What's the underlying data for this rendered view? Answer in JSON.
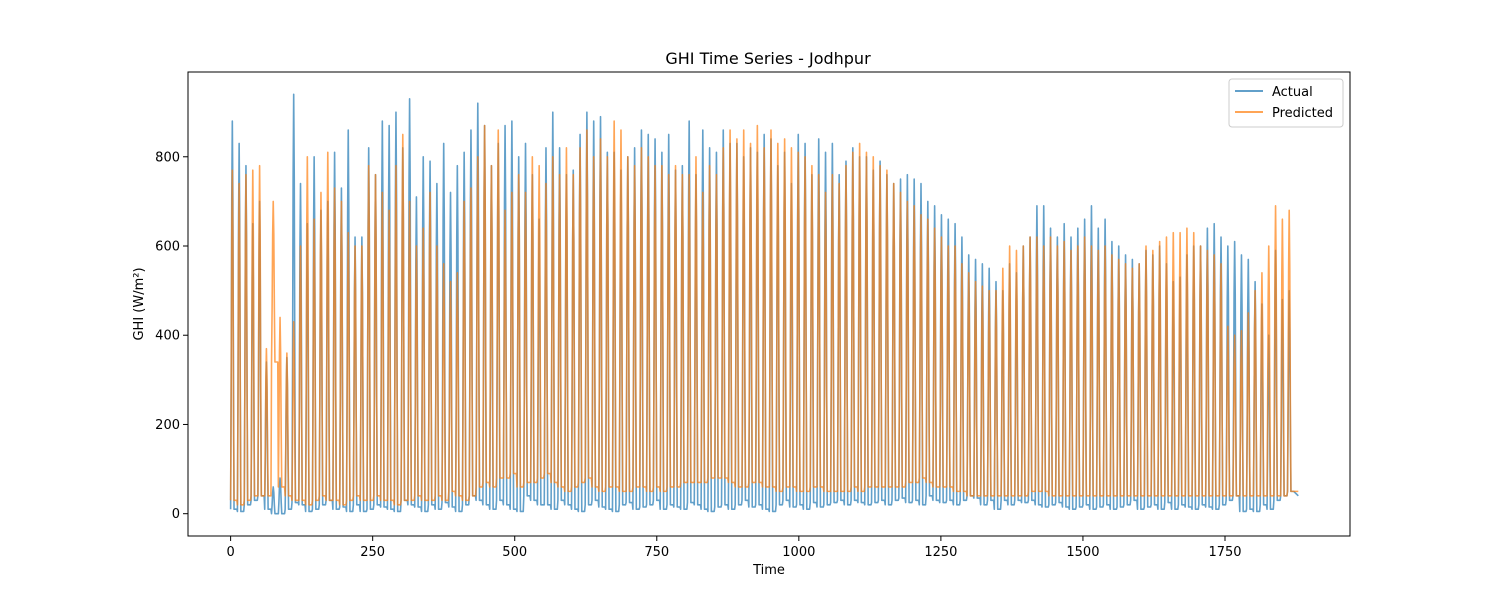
{
  "chart_data": {
    "type": "line",
    "title": "GHI Time Series - Jodhpur",
    "xlabel": "Time",
    "ylabel": "GHI (W/m²)",
    "xlim": [
      -75,
      1970
    ],
    "ylim": [
      -50,
      990
    ],
    "xticks": [
      0,
      250,
      500,
      750,
      1000,
      1250,
      1500,
      1750
    ],
    "xtick_labels": [
      "0",
      "250",
      "500",
      "750",
      "1000",
      "1250",
      "1500",
      "1750"
    ],
    "yticks": [
      0,
      200,
      400,
      600,
      800
    ],
    "ytick_labels": [
      "0",
      "200",
      "400",
      "600",
      "800"
    ],
    "grid": false,
    "legend_position": "upper right",
    "n_points": 1880,
    "period": 12,
    "series": [
      {
        "name": "Actual",
        "color": "#1f77b4",
        "peaks": [
          880,
          830,
          780,
          650,
          700,
          340,
          60,
          80,
          350,
          940,
          740,
          650,
          800,
          680,
          700,
          810,
          730,
          860,
          620,
          620,
          820,
          760,
          880,
          870,
          900,
          820,
          930,
          710,
          800,
          790,
          740,
          830,
          720,
          780,
          810,
          860,
          920,
          870,
          780,
          830,
          870,
          880,
          800,
          830,
          760,
          660,
          820,
          900,
          820,
          760,
          770,
          850,
          900,
          880,
          890,
          810,
          810,
          770,
          800,
          820,
          860,
          850,
          840,
          810,
          850,
          770,
          780,
          880,
          760,
          860,
          820,
          810,
          860,
          830,
          830,
          800,
          820,
          810,
          850,
          840,
          780,
          810,
          740,
          850,
          830,
          760,
          840,
          810,
          830,
          760,
          790,
          820,
          800,
          800,
          770,
          790,
          760,
          740,
          750,
          760,
          750,
          740,
          700,
          690,
          670,
          660,
          650,
          620,
          580,
          570,
          560,
          550,
          520,
          500,
          560,
          540,
          600,
          620,
          690,
          690,
          640,
          620,
          650,
          620,
          640,
          660,
          690,
          640,
          660,
          610,
          600,
          580,
          570,
          560,
          590,
          580,
          600,
          560,
          520,
          530,
          580,
          600,
          600,
          640,
          650,
          620,
          600,
          610,
          580,
          570,
          520,
          470,
          400,
          590,
          480,
          500,
          600,
          620,
          640,
          630,
          640,
          650,
          640,
          580,
          660,
          640,
          650,
          660,
          600
        ],
        "troughs": [
          10,
          5,
          20,
          30,
          40,
          10,
          0,
          0,
          10,
          25,
          20,
          5,
          10,
          20,
          30,
          10,
          15,
          5,
          20,
          5,
          10,
          20,
          15,
          10,
          5,
          30,
          20,
          15,
          5,
          20,
          10,
          25,
          15,
          5,
          20,
          40,
          30,
          20,
          10,
          30,
          20,
          10,
          5,
          40,
          30,
          20,
          20,
          10,
          30,
          20,
          10,
          5,
          20,
          30,
          15,
          10,
          5,
          20,
          25,
          10,
          15,
          20,
          30,
          10,
          20,
          15,
          10,
          25,
          20,
          10,
          5,
          15,
          20,
          10,
          20,
          30,
          15,
          20,
          10,
          5,
          20,
          30,
          15,
          20,
          10,
          25,
          15,
          20,
          25,
          30,
          20,
          30,
          25,
          20,
          25,
          30,
          20,
          30,
          35,
          25,
          30,
          20,
          40,
          30,
          25,
          30,
          20,
          30,
          40,
          35,
          20,
          30,
          10,
          30,
          20,
          30,
          25,
          30,
          20,
          15,
          20,
          25,
          15,
          10,
          15,
          20,
          10,
          15,
          20,
          10,
          15,
          20,
          30,
          10,
          15,
          20,
          10,
          25,
          10,
          20,
          15,
          10,
          20,
          15,
          10,
          20,
          30,
          40,
          5,
          10,
          5,
          20,
          10,
          30,
          40,
          50,
          40,
          30,
          60,
          50,
          55,
          50,
          40,
          50,
          60,
          50,
          30
        ]
      },
      {
        "name": "Predicted",
        "color": "#ff7f0e",
        "peaks": [
          770,
          740,
          760,
          770,
          780,
          370,
          700,
          440,
          360,
          430,
          600,
          800,
          660,
          720,
          810,
          730,
          700,
          630,
          600,
          600,
          780,
          760,
          720,
          680,
          780,
          850,
          700,
          600,
          640,
          720,
          600,
          560,
          520,
          540,
          700,
          730,
          800,
          870,
          780,
          860,
          680,
          720,
          760,
          720,
          800,
          780,
          740,
          800,
          760,
          820,
          760,
          820,
          860,
          800,
          840,
          800,
          880,
          860,
          800,
          780,
          820,
          800,
          780,
          780,
          760,
          780,
          760,
          760,
          800,
          720,
          780,
          760,
          820,
          860,
          840,
          860,
          830,
          870,
          820,
          860,
          830,
          840,
          820,
          810,
          800,
          780,
          760,
          720,
          760,
          740,
          780,
          810,
          830,
          810,
          800,
          780,
          770,
          740,
          720,
          700,
          690,
          670,
          660,
          640,
          620,
          600,
          600,
          560,
          540,
          520,
          510,
          500,
          500,
          550,
          600,
          590,
          600,
          620,
          620,
          600,
          620,
          600,
          610,
          590,
          600,
          620,
          600,
          590,
          600,
          580,
          570,
          560,
          550,
          560,
          600,
          590,
          610,
          620,
          630,
          630,
          640,
          630,
          600,
          590,
          580,
          560,
          420,
          400,
          410,
          450,
          500,
          540,
          600,
          690,
          660,
          680,
          660,
          650,
          640,
          660,
          680,
          620,
          690,
          640,
          600,
          560,
          620,
          690,
          560
        ],
        "troughs": [
          30,
          20,
          30,
          40,
          40,
          40,
          340,
          60,
          40,
          30,
          30,
          20,
          30,
          40,
          30,
          30,
          20,
          30,
          40,
          30,
          30,
          40,
          30,
          30,
          20,
          30,
          30,
          40,
          30,
          30,
          40,
          30,
          50,
          40,
          30,
          40,
          60,
          70,
          60,
          80,
          80,
          90,
          60,
          70,
          70,
          80,
          90,
          70,
          60,
          50,
          60,
          70,
          80,
          60,
          50,
          60,
          60,
          50,
          50,
          60,
          60,
          50,
          60,
          50,
          60,
          60,
          70,
          70,
          70,
          70,
          80,
          80,
          80,
          70,
          60,
          60,
          70,
          70,
          60,
          60,
          50,
          60,
          60,
          50,
          50,
          60,
          60,
          50,
          50,
          50,
          50,
          60,
          50,
          60,
          60,
          60,
          60,
          60,
          60,
          70,
          70,
          80,
          70,
          60,
          60,
          60,
          50,
          50,
          40,
          40,
          40,
          40,
          40,
          40,
          40,
          40,
          40,
          50,
          50,
          50,
          40,
          40,
          40,
          40,
          40,
          40,
          40,
          40,
          40,
          40,
          40,
          40,
          40,
          40,
          40,
          40,
          40,
          40,
          40,
          40,
          40,
          40,
          40,
          40,
          40,
          40,
          40,
          40,
          40,
          40,
          40,
          40,
          40,
          40,
          40,
          50,
          50,
          50,
          50,
          50,
          50,
          50,
          50,
          60,
          60,
          60,
          60,
          60,
          60
        ]
      }
    ]
  }
}
